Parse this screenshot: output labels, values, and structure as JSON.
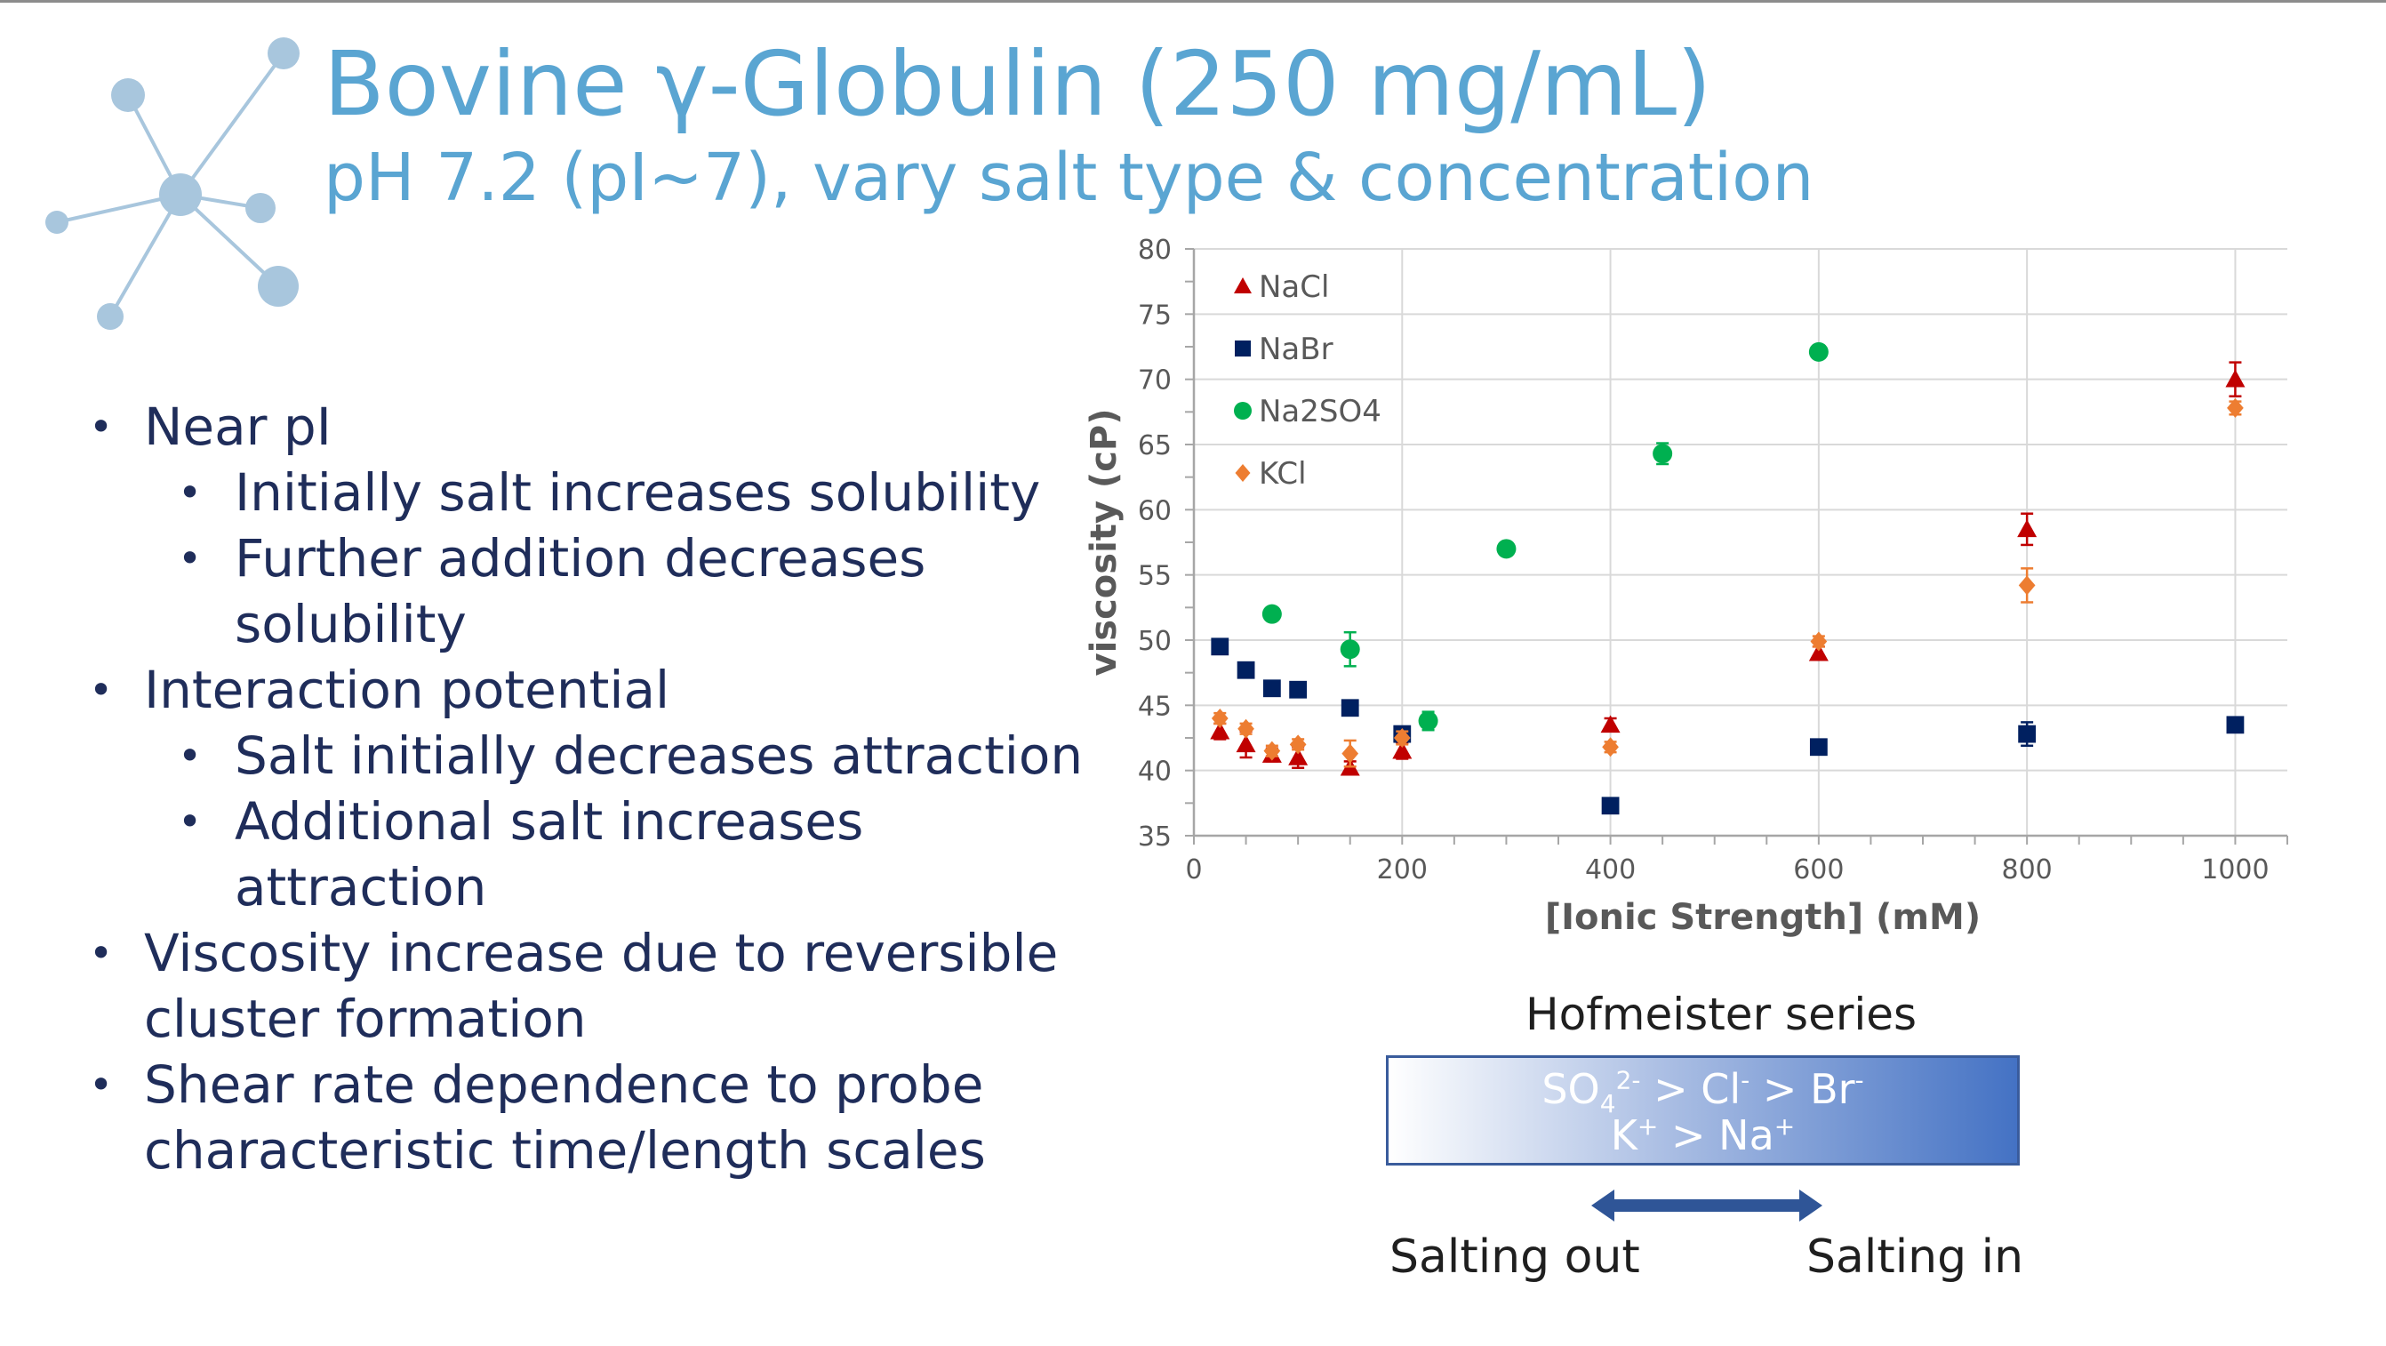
{
  "slide": {
    "title": "Bovine γ-Globulin (250 mg/mL)",
    "subtitle": "pH 7.2 (pI~7), vary salt type & concentration"
  },
  "bullets": [
    {
      "level": 1,
      "lines": [
        "Near pI"
      ]
    },
    {
      "level": 2,
      "lines": [
        "Initially salt increases solubility"
      ]
    },
    {
      "level": 2,
      "lines": [
        "Further addition decreases",
        "solubility"
      ]
    },
    {
      "level": 1,
      "lines": [
        "Interaction potential"
      ]
    },
    {
      "level": 2,
      "lines": [
        "Salt initially decreases attraction"
      ]
    },
    {
      "level": 2,
      "lines": [
        "Additional salt increases",
        "attraction"
      ]
    },
    {
      "level": 1,
      "lines": [
        "Viscosity increase due to reversible",
        "cluster formation"
      ]
    },
    {
      "level": 1,
      "lines": [
        "Shear rate dependence to probe",
        "characteristic time/length scales"
      ]
    }
  ],
  "hofmeister": {
    "title": "Hofmeister series",
    "anion_line": {
      "so4": "SO",
      "so4_sub": "4",
      "so4_sup": "2-",
      "mid": " > Cl",
      "cl_sup": "-",
      "br": " > Br",
      "br_sup": "-"
    },
    "cation_line": {
      "k": "K",
      "k_sup": "+",
      "na": " > Na",
      "na_sup": "+"
    },
    "salting_out": "Salting out",
    "salting_in": "Salting in",
    "gradient_colors": [
      "#ffffff",
      "#4472c4"
    ],
    "border_color": "#3a5c9c",
    "arrow_color": "#2f5597"
  },
  "chart_data": {
    "type": "scatter",
    "title": "",
    "xlabel": "[Ionic Strength] (mM)",
    "ylabel": "viscosity (cP)",
    "xlim": [
      0,
      1050
    ],
    "ylim": [
      35,
      80
    ],
    "xticks": [
      0,
      200,
      400,
      600,
      800,
      1000
    ],
    "yticks": [
      35,
      40,
      45,
      50,
      55,
      60,
      65,
      70,
      75,
      80
    ],
    "grid": true,
    "legend_position": "top-left",
    "series": [
      {
        "name": "NaCl",
        "marker": "triangle",
        "color": "#c00000",
        "points": [
          [
            25,
            43.0,
            0.6
          ],
          [
            50,
            42.0,
            1.0
          ],
          [
            75,
            41.2,
            0.5
          ],
          [
            100,
            41.0,
            0.8
          ],
          [
            150,
            40.2,
            0.5
          ],
          [
            200,
            41.5,
            0.6
          ],
          [
            400,
            43.5,
            0.5
          ],
          [
            600,
            49.0,
            0.5
          ],
          [
            800,
            58.5,
            1.2
          ],
          [
            1000,
            70.0,
            1.3
          ]
        ]
      },
      {
        "name": "NaBr",
        "marker": "square",
        "color": "#002060",
        "points": [
          [
            25,
            49.5,
            0.4
          ],
          [
            50,
            47.7,
            0.5
          ],
          [
            75,
            46.3,
            0.4
          ],
          [
            100,
            46.2,
            0.3
          ],
          [
            150,
            44.8,
            0.4
          ],
          [
            200,
            42.8,
            0.5
          ],
          [
            400,
            37.3,
            0.4
          ],
          [
            600,
            41.8,
            0.5
          ],
          [
            800,
            42.8,
            0.9
          ],
          [
            1000,
            43.5,
            0.5
          ]
        ]
      },
      {
        "name": "Na2SO4",
        "marker": "circle",
        "color": "#00b050",
        "points": [
          [
            75,
            52.0,
            0.4
          ],
          [
            150,
            49.3,
            1.3
          ],
          [
            225,
            43.8,
            0.7
          ],
          [
            300,
            57.0,
            0.5
          ],
          [
            450,
            64.3,
            0.8
          ],
          [
            600,
            72.1,
            0.4
          ]
        ]
      },
      {
        "name": "KCl",
        "marker": "diamond",
        "color": "#ed7d31",
        "points": [
          [
            25,
            44.0,
            0.4
          ],
          [
            50,
            43.2,
            0.4
          ],
          [
            75,
            41.5,
            0.4
          ],
          [
            100,
            42.0,
            0.4
          ],
          [
            150,
            41.3,
            1.0
          ],
          [
            200,
            42.5,
            0.5
          ],
          [
            400,
            41.8,
            0.4
          ],
          [
            600,
            49.9,
            0.4
          ],
          [
            800,
            54.2,
            1.3
          ],
          [
            1000,
            67.8,
            0.5
          ]
        ]
      }
    ]
  }
}
